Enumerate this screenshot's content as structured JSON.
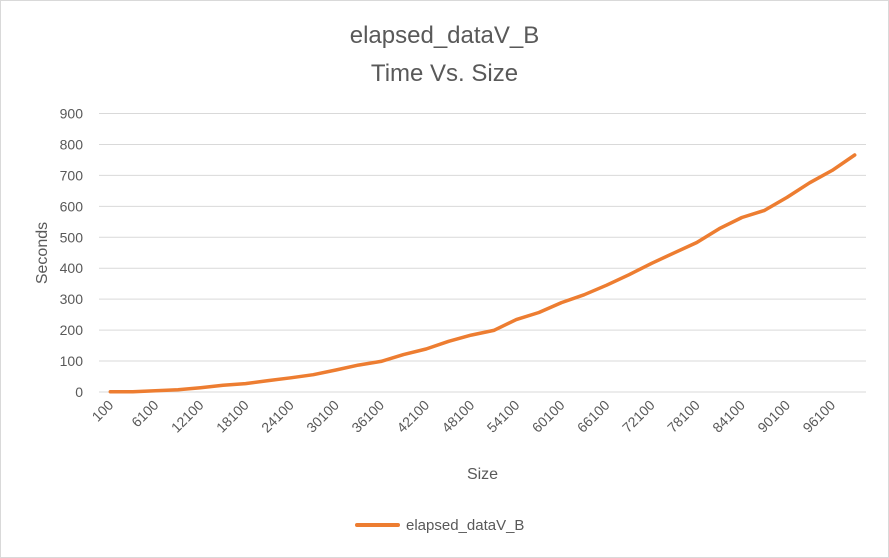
{
  "chart_data": {
    "type": "line",
    "title": "elapsed_dataV_B",
    "subtitle": "Time Vs. Size",
    "xlabel": "Size",
    "ylabel": "Seconds",
    "ylim": [
      0,
      900
    ],
    "yticks": [
      0,
      100,
      200,
      300,
      400,
      500,
      600,
      700,
      800,
      900
    ],
    "xtick_labels": [
      "100",
      "6100",
      "12100",
      "18100",
      "24100",
      "30100",
      "36100",
      "42100",
      "48100",
      "54100",
      "60100",
      "66100",
      "72100",
      "78100",
      "84100",
      "90100",
      "96100"
    ],
    "grid": true,
    "legend_position": "bottom",
    "series": [
      {
        "name": "elapsed_dataV_B",
        "color": "#ED7D31",
        "x": [
          100,
          3100,
          6100,
          9100,
          12100,
          15100,
          18100,
          21100,
          24100,
          27100,
          30100,
          33100,
          36100,
          39100,
          42100,
          45100,
          48100,
          51100,
          54100,
          57100,
          60100,
          63100,
          66100,
          69100,
          72100,
          75100,
          78100,
          81100,
          84100,
          87100,
          90100,
          93100,
          96100,
          99100
        ],
        "values": [
          1,
          1,
          4,
          7,
          14,
          22,
          27,
          37,
          46,
          56,
          71,
          87,
          99,
          121,
          139,
          164,
          184,
          199,
          234,
          257,
          289,
          314,
          345,
          379,
          416,
          450,
          483,
          528,
          564,
          587,
          629,
          676,
          716,
          766
        ]
      }
    ]
  }
}
